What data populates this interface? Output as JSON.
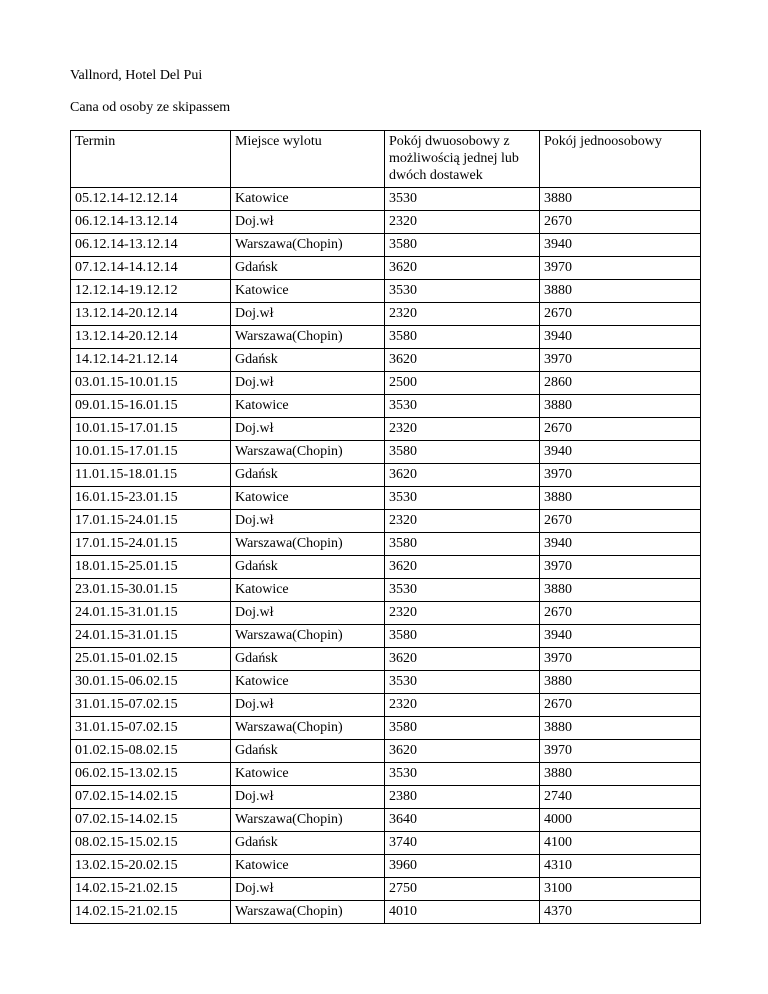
{
  "document": {
    "title": "Vallnord, Hotel Del Pui",
    "subtitle": "Cana od osoby ze skipassem"
  },
  "table": {
    "columns": [
      "Termin",
      "Miejsce wylotu",
      "Pokój dwuosobowy z możliwością jednej lub dwóch dostawek",
      "Pokój jednoosobowy"
    ],
    "rows": [
      [
        "05.12.14-12.12.14",
        "Katowice",
        "3530",
        "3880"
      ],
      [
        "06.12.14-13.12.14",
        "Doj.wł",
        "2320",
        "2670"
      ],
      [
        "06.12.14-13.12.14",
        "Warszawa(Chopin)",
        "3580",
        "3940"
      ],
      [
        "07.12.14-14.12.14",
        "Gdańsk",
        "3620",
        "3970"
      ],
      [
        "12.12.14-19.12.12",
        "Katowice",
        "3530",
        "3880"
      ],
      [
        "13.12.14-20.12.14",
        "Doj.wł",
        "2320",
        "2670"
      ],
      [
        "13.12.14-20.12.14",
        "Warszawa(Chopin)",
        "3580",
        "3940"
      ],
      [
        "14.12.14-21.12.14",
        "Gdańsk",
        "3620",
        "3970"
      ],
      [
        "03.01.15-10.01.15",
        "Doj.wł",
        "2500",
        "2860"
      ],
      [
        "09.01.15-16.01.15",
        "Katowice",
        "3530",
        "3880"
      ],
      [
        "10.01.15-17.01.15",
        "Doj.wł",
        "2320",
        "2670"
      ],
      [
        "10.01.15-17.01.15",
        "Warszawa(Chopin)",
        "3580",
        "3940"
      ],
      [
        "11.01.15-18.01.15",
        "Gdańsk",
        "3620",
        "3970"
      ],
      [
        "16.01.15-23.01.15",
        "Katowice",
        "3530",
        "3880"
      ],
      [
        "17.01.15-24.01.15",
        "Doj.wł",
        "2320",
        "2670"
      ],
      [
        "17.01.15-24.01.15",
        "Warszawa(Chopin)",
        "3580",
        "3940"
      ],
      [
        "18.01.15-25.01.15",
        "Gdańsk",
        "3620",
        "3970"
      ],
      [
        "23.01.15-30.01.15",
        "Katowice",
        "3530",
        "3880"
      ],
      [
        "24.01.15-31.01.15",
        "Doj.wł",
        "2320",
        "2670"
      ],
      [
        "24.01.15-31.01.15",
        "Warszawa(Chopin)",
        "3580",
        "3940"
      ],
      [
        "25.01.15-01.02.15",
        "Gdańsk",
        "3620",
        "3970"
      ],
      [
        "30.01.15-06.02.15",
        "Katowice",
        "3530",
        "3880"
      ],
      [
        "31.01.15-07.02.15",
        "Doj.wł",
        "2320",
        "2670"
      ],
      [
        "31.01.15-07.02.15",
        "Warszawa(Chopin)",
        "3580",
        "3880"
      ],
      [
        "01.02.15-08.02.15",
        "Gdańsk",
        "3620",
        "3970"
      ],
      [
        "06.02.15-13.02.15",
        "Katowice",
        "3530",
        "3880"
      ],
      [
        "07.02.15-14.02.15",
        "Doj.wł",
        "2380",
        "2740"
      ],
      [
        "07.02.15-14.02.15",
        "Warszawa(Chopin)",
        "3640",
        "4000"
      ],
      [
        "08.02.15-15.02.15",
        "Gdańsk",
        "3740",
        "4100"
      ],
      [
        "13.02.15-20.02.15",
        "Katowice",
        "3960",
        "4310"
      ],
      [
        "14.02.15-21.02.15",
        "Doj.wł",
        "2750",
        "3100"
      ],
      [
        "14.02.15-21.02.15",
        "Warszawa(Chopin)",
        "4010",
        "4370"
      ]
    ]
  }
}
